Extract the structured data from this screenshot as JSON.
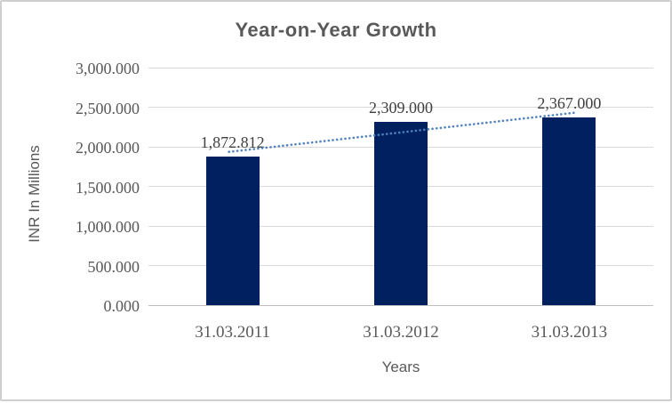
{
  "chart_data": {
    "type": "bar",
    "title": "Year-on-Year Growth",
    "xlabel": "Years",
    "ylabel": "INR In Millions",
    "categories": [
      "31.03.2011",
      "31.03.2012",
      "31.03.2013"
    ],
    "values": [
      1872.812,
      2309.0,
      2367.0
    ],
    "data_labels": [
      "1,872.812",
      "2,309.000",
      "2,367.000"
    ],
    "yticks": [
      {
        "value": 0,
        "label": "0.000"
      },
      {
        "value": 500,
        "label": "500.000"
      },
      {
        "value": 1000,
        "label": "1,000.000"
      },
      {
        "value": 1500,
        "label": "1,500.000"
      },
      {
        "value": 2000,
        "label": "2,000.000"
      },
      {
        "value": 2500,
        "label": "2,500.000"
      },
      {
        "value": 3000,
        "label": "3,000.000"
      }
    ],
    "ylim": [
      0,
      3000
    ],
    "grid": true,
    "legend": false,
    "colors": {
      "bar": "#002060",
      "trendline": "#4F81BD",
      "gridline": "#D9D9D9",
      "title_text": "#595959",
      "tick_text": "#595959",
      "data_label_text": "#404040",
      "axis_title_text": "#595959"
    },
    "trendline": {
      "type": "linear",
      "style": "dotted"
    }
  }
}
